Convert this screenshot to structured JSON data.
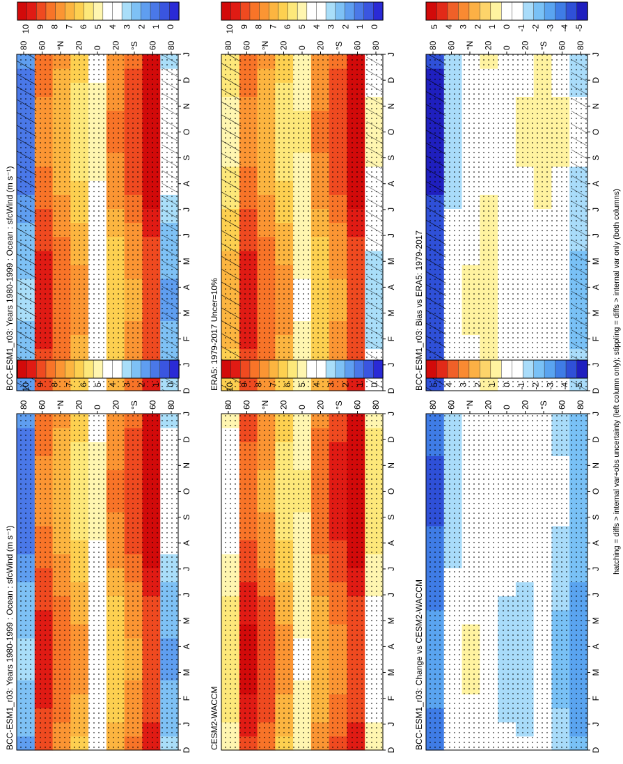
{
  "figure": {
    "footnote": "hatching = diffs > internal var+obs uncertainty (left column only); stippling = diffs > internal var only (both columns)",
    "month_labels": [
      "D",
      "J",
      "F",
      "M",
      "A",
      "M",
      "J",
      "J",
      "A",
      "S",
      "O",
      "N",
      "D",
      "J"
    ],
    "lat_labels": [
      "80",
      "60",
      "°N",
      "20",
      "0",
      "20",
      "°S",
      "60",
      "80"
    ],
    "colors": {
      "abs_scale": [
        "#2a2ad6",
        "#3a55e0",
        "#4a78e8",
        "#5f9ef0",
        "#7ec1f5",
        "#a9def9",
        "#ffffff",
        "#ffffff",
        "#fff6b0",
        "#fde87a",
        "#fdd050",
        "#fcb540",
        "#fb9533",
        "#f87428",
        "#ef4a20",
        "#e01b14",
        "#d20a0a"
      ],
      "diff_scale": [
        "#1f1fbf",
        "#2f50d8",
        "#3f7ce6",
        "#5aa4f0",
        "#79c1f6",
        "#a9dcfa",
        "#ffffff",
        "#ffffff",
        "#fff3a0",
        "#fdd46a",
        "#fcb045",
        "#f98a32",
        "#f06028",
        "#e22a18",
        "#d20a0a"
      ]
    }
  },
  "panels": [
    {
      "id": "p1",
      "title": "BCC-ESM1_r03: Years 1980-1999 : Ocean : sfcWind (m s⁻¹)",
      "kind": "abs",
      "hatch": true
    },
    {
      "id": "p2",
      "title": "ERA5: 1979-2017 Uncer=10%",
      "kind": "abs",
      "hatch": true
    },
    {
      "id": "p3",
      "title": "BCC-ESM1_r03: Bias vs ERA5: 1979-2017",
      "kind": "diff",
      "hatch": true
    },
    {
      "id": "p4",
      "title": "BCC-ESM1_r03: Years 1980-1999 : Ocean : sfcWind (m s⁻¹)",
      "kind": "abs",
      "hatch": false
    },
    {
      "id": "p5",
      "title": "CESM2-WACCM",
      "kind": "abs",
      "hatch": false
    },
    {
      "id": "p6",
      "title": "BCC-ESM1_r03: Change vs CESM2-WACCM",
      "kind": "diff",
      "hatch": false
    }
  ],
  "colorbars": [
    {
      "id": "cb1",
      "kind": "abs",
      "ticks": [
        "10",
        "9",
        "8",
        "7",
        "6",
        "5",
        "4",
        "3",
        "2",
        "1",
        "0"
      ]
    },
    {
      "id": "cb2",
      "kind": "abs",
      "ticks": [
        "10",
        "9",
        "8",
        "7",
        "6",
        "5",
        "4",
        "3",
        "2",
        "1",
        "0"
      ]
    },
    {
      "id": "cb3",
      "kind": "diff",
      "ticks": [
        "5",
        "4",
        "3",
        "2",
        "1",
        "0",
        "-1",
        "-2",
        "-3",
        "-4",
        "-5"
      ]
    },
    {
      "id": "cb4",
      "kind": "abs",
      "ticks": [
        "10",
        "9",
        "8",
        "7",
        "6",
        "5",
        "4",
        "3",
        "2",
        "1",
        "0"
      ]
    },
    {
      "id": "cb5",
      "kind": "abs",
      "ticks": [
        "10",
        "9",
        "8",
        "7",
        "6",
        "5",
        "4",
        "3",
        "2",
        "1",
        "0"
      ]
    },
    {
      "id": "cb6",
      "kind": "diff",
      "ticks": [
        "5",
        "4",
        "3",
        "2",
        "1",
        "0",
        "-1",
        "-2",
        "-3",
        "-4",
        "-5"
      ]
    }
  ],
  "chart_data": [
    {
      "type": "heatmap",
      "title": "BCC-ESM1_r03: Years 1980-1999 : Ocean : sfcWind (m s⁻¹)",
      "x": [
        "D",
        "J",
        "F",
        "M",
        "A",
        "M",
        "J",
        "J",
        "A",
        "S",
        "O",
        "N",
        "D",
        "J"
      ],
      "y_labels": [
        "80",
        "60",
        "°N",
        "20",
        "0",
        "20",
        "°S",
        "60",
        "80"
      ],
      "colorbar_range": [
        0,
        10
      ],
      "lat_band_values": {
        "80N": 2,
        "60N": 8.5,
        "40N": 7.5,
        "20N": 6.5,
        "0": 4.5,
        "20S": 7,
        "40S": 8,
        "60S": 9.5,
        "80S": 3
      }
    },
    {
      "type": "heatmap",
      "title": "ERA5: 1979-2017 Uncer=10%",
      "x": [
        "D",
        "J",
        "F",
        "M",
        "A",
        "M",
        "J",
        "J",
        "A",
        "S",
        "O",
        "N",
        "D",
        "J"
      ],
      "y_labels": [
        "80",
        "60",
        "°N",
        "20",
        "0",
        "20",
        "°S",
        "60",
        "80"
      ],
      "colorbar_range": [
        0,
        10
      ],
      "lat_band_values": {
        "80N": 6,
        "60N": 8.5,
        "40N": 7.5,
        "20N": 6.5,
        "0": 5,
        "20S": 7,
        "40S": 8,
        "60S": 9.5,
        "80S": 4
      }
    },
    {
      "type": "heatmap",
      "title": "BCC-ESM1_r03: Bias vs ERA5: 1979-2017",
      "x": [
        "D",
        "J",
        "F",
        "M",
        "A",
        "M",
        "J",
        "J",
        "A",
        "S",
        "O",
        "N",
        "D",
        "J"
      ],
      "y_labels": [
        "80",
        "60",
        "°N",
        "20",
        "0",
        "20",
        "°S",
        "60",
        "80"
      ],
      "colorbar_range": [
        -5,
        5
      ],
      "lat_band_values": {
        "80N": -4.5,
        "60N": -1,
        "40N": 0,
        "20N": 0.5,
        "0": -0.5,
        "20S": 0,
        "40S": 0.3,
        "60S": 0,
        "80S": -1.5
      }
    },
    {
      "type": "heatmap",
      "title": "BCC-ESM1_r03: Years 1980-1999 : Ocean : sfcWind (m s⁻¹)",
      "x": [
        "D",
        "J",
        "F",
        "M",
        "A",
        "M",
        "J",
        "J",
        "A",
        "S",
        "O",
        "N",
        "D",
        "J"
      ],
      "y_labels": [
        "80",
        "60",
        "°N",
        "20",
        "0",
        "20",
        "°S",
        "60",
        "80"
      ],
      "colorbar_range": [
        0,
        10
      ],
      "lat_band_values": {
        "80N": 2,
        "60N": 8.5,
        "40N": 7.5,
        "20N": 6.5,
        "0": 4.5,
        "20S": 7,
        "40S": 8,
        "60S": 9.5,
        "80S": 3
      }
    },
    {
      "type": "heatmap",
      "title": "CESM2-WACCM",
      "x": [
        "D",
        "J",
        "F",
        "M",
        "A",
        "M",
        "J",
        "J",
        "A",
        "S",
        "O",
        "N",
        "D",
        "J"
      ],
      "y_labels": [
        "80",
        "60",
        "°N",
        "20",
        "0",
        "20",
        "°S",
        "60",
        "80"
      ],
      "colorbar_range": [
        0,
        10
      ],
      "lat_band_values": {
        "80N": 5,
        "60N": 9,
        "40N": 8,
        "20N": 6.5,
        "0": 5,
        "20S": 7.5,
        "40S": 8.5,
        "60S": 9.5,
        "80S": 5
      }
    },
    {
      "type": "heatmap",
      "title": "BCC-ESM1_r03: Change vs CESM2-WACCM",
      "x": [
        "D",
        "J",
        "F",
        "M",
        "A",
        "M",
        "J",
        "J",
        "A",
        "S",
        "O",
        "N",
        "D",
        "J"
      ],
      "y_labels": [
        "80",
        "60",
        "°N",
        "20",
        "0",
        "20",
        "°S",
        "60",
        "80"
      ],
      "colorbar_range": [
        -5,
        5
      ],
      "lat_band_values": {
        "80N": -3.5,
        "60N": -1,
        "40N": 0,
        "20N": -0.3,
        "0": -1,
        "20S": -1,
        "40S": -0.5,
        "60S": -1.5,
        "80S": -2.5
      }
    }
  ]
}
